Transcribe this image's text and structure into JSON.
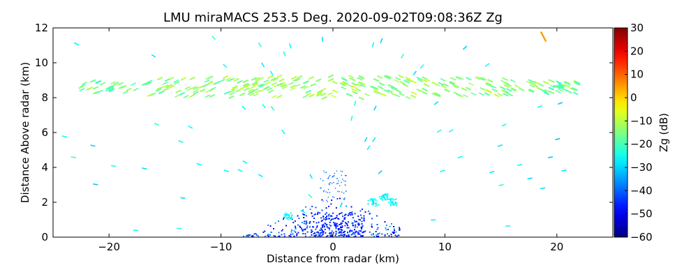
{
  "chart_data": {
    "type": "heatmap",
    "title": "LMU miraMACS 253.5 Deg. 2020-09-02T09:08:36Z  Zg",
    "xlabel": "Distance from radar (km)",
    "ylabel": "Distance Above radar  (km)",
    "xlim": [
      -25,
      25
    ],
    "ylim": [
      0,
      12
    ],
    "xticks": [
      -20,
      -10,
      0,
      10,
      20
    ],
    "xtick_labels": [
      "−20",
      "−10",
      "0",
      "10",
      "20"
    ],
    "yticks": [
      0,
      2,
      4,
      6,
      8,
      10,
      12
    ],
    "ytick_labels": [
      "0",
      "2",
      "4",
      "6",
      "8",
      "10",
      "12"
    ],
    "colorbar": {
      "label": "Zg (dB)",
      "range": [
        -60,
        30
      ],
      "ticks": [
        -60,
        -50,
        -40,
        -30,
        -20,
        -10,
        0,
        10,
        20,
        30
      ],
      "tick_labels": [
        "−60",
        "−50",
        "−40",
        "−30",
        "−20",
        "−10",
        "0",
        "10",
        "20",
        "30"
      ],
      "colormap": [
        "#00007f",
        "#0000ff",
        "#007fff",
        "#00ffff",
        "#7fff7f",
        "#ffff00",
        "#ff7f00",
        "#ff0000",
        "#7f0000"
      ]
    },
    "features": {
      "cloud_layer": {
        "x_range_km": [
          -22.5,
          22
        ],
        "base_km": 8.0,
        "top_km": 9.3,
        "center_km": 8.6,
        "zg_db": -17
      },
      "near_surface_echo": {
        "x_range_km": [
          -8,
          6
        ],
        "top_km": 2.5,
        "zg_db": -45
      },
      "speckle_zg_db": -26,
      "hot_pixels": [
        {
          "x": 18.8,
          "y": 11.5,
          "zg_db": 5
        }
      ]
    }
  }
}
